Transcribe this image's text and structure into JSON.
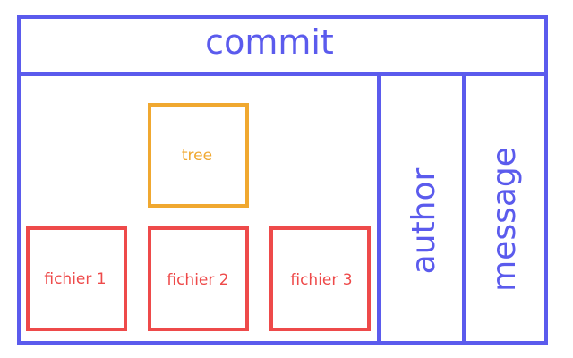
{
  "commit": {
    "title": "commit",
    "color": "#5b5bed"
  },
  "tree": {
    "label": "tree",
    "color": "#f0a830"
  },
  "files": {
    "color": "#ee4a4a",
    "items": [
      {
        "label": "fichier 1"
      },
      {
        "label": "fichier 2"
      },
      {
        "label": "fichier 3"
      }
    ]
  },
  "author": {
    "label": "author"
  },
  "message": {
    "label": "message"
  }
}
